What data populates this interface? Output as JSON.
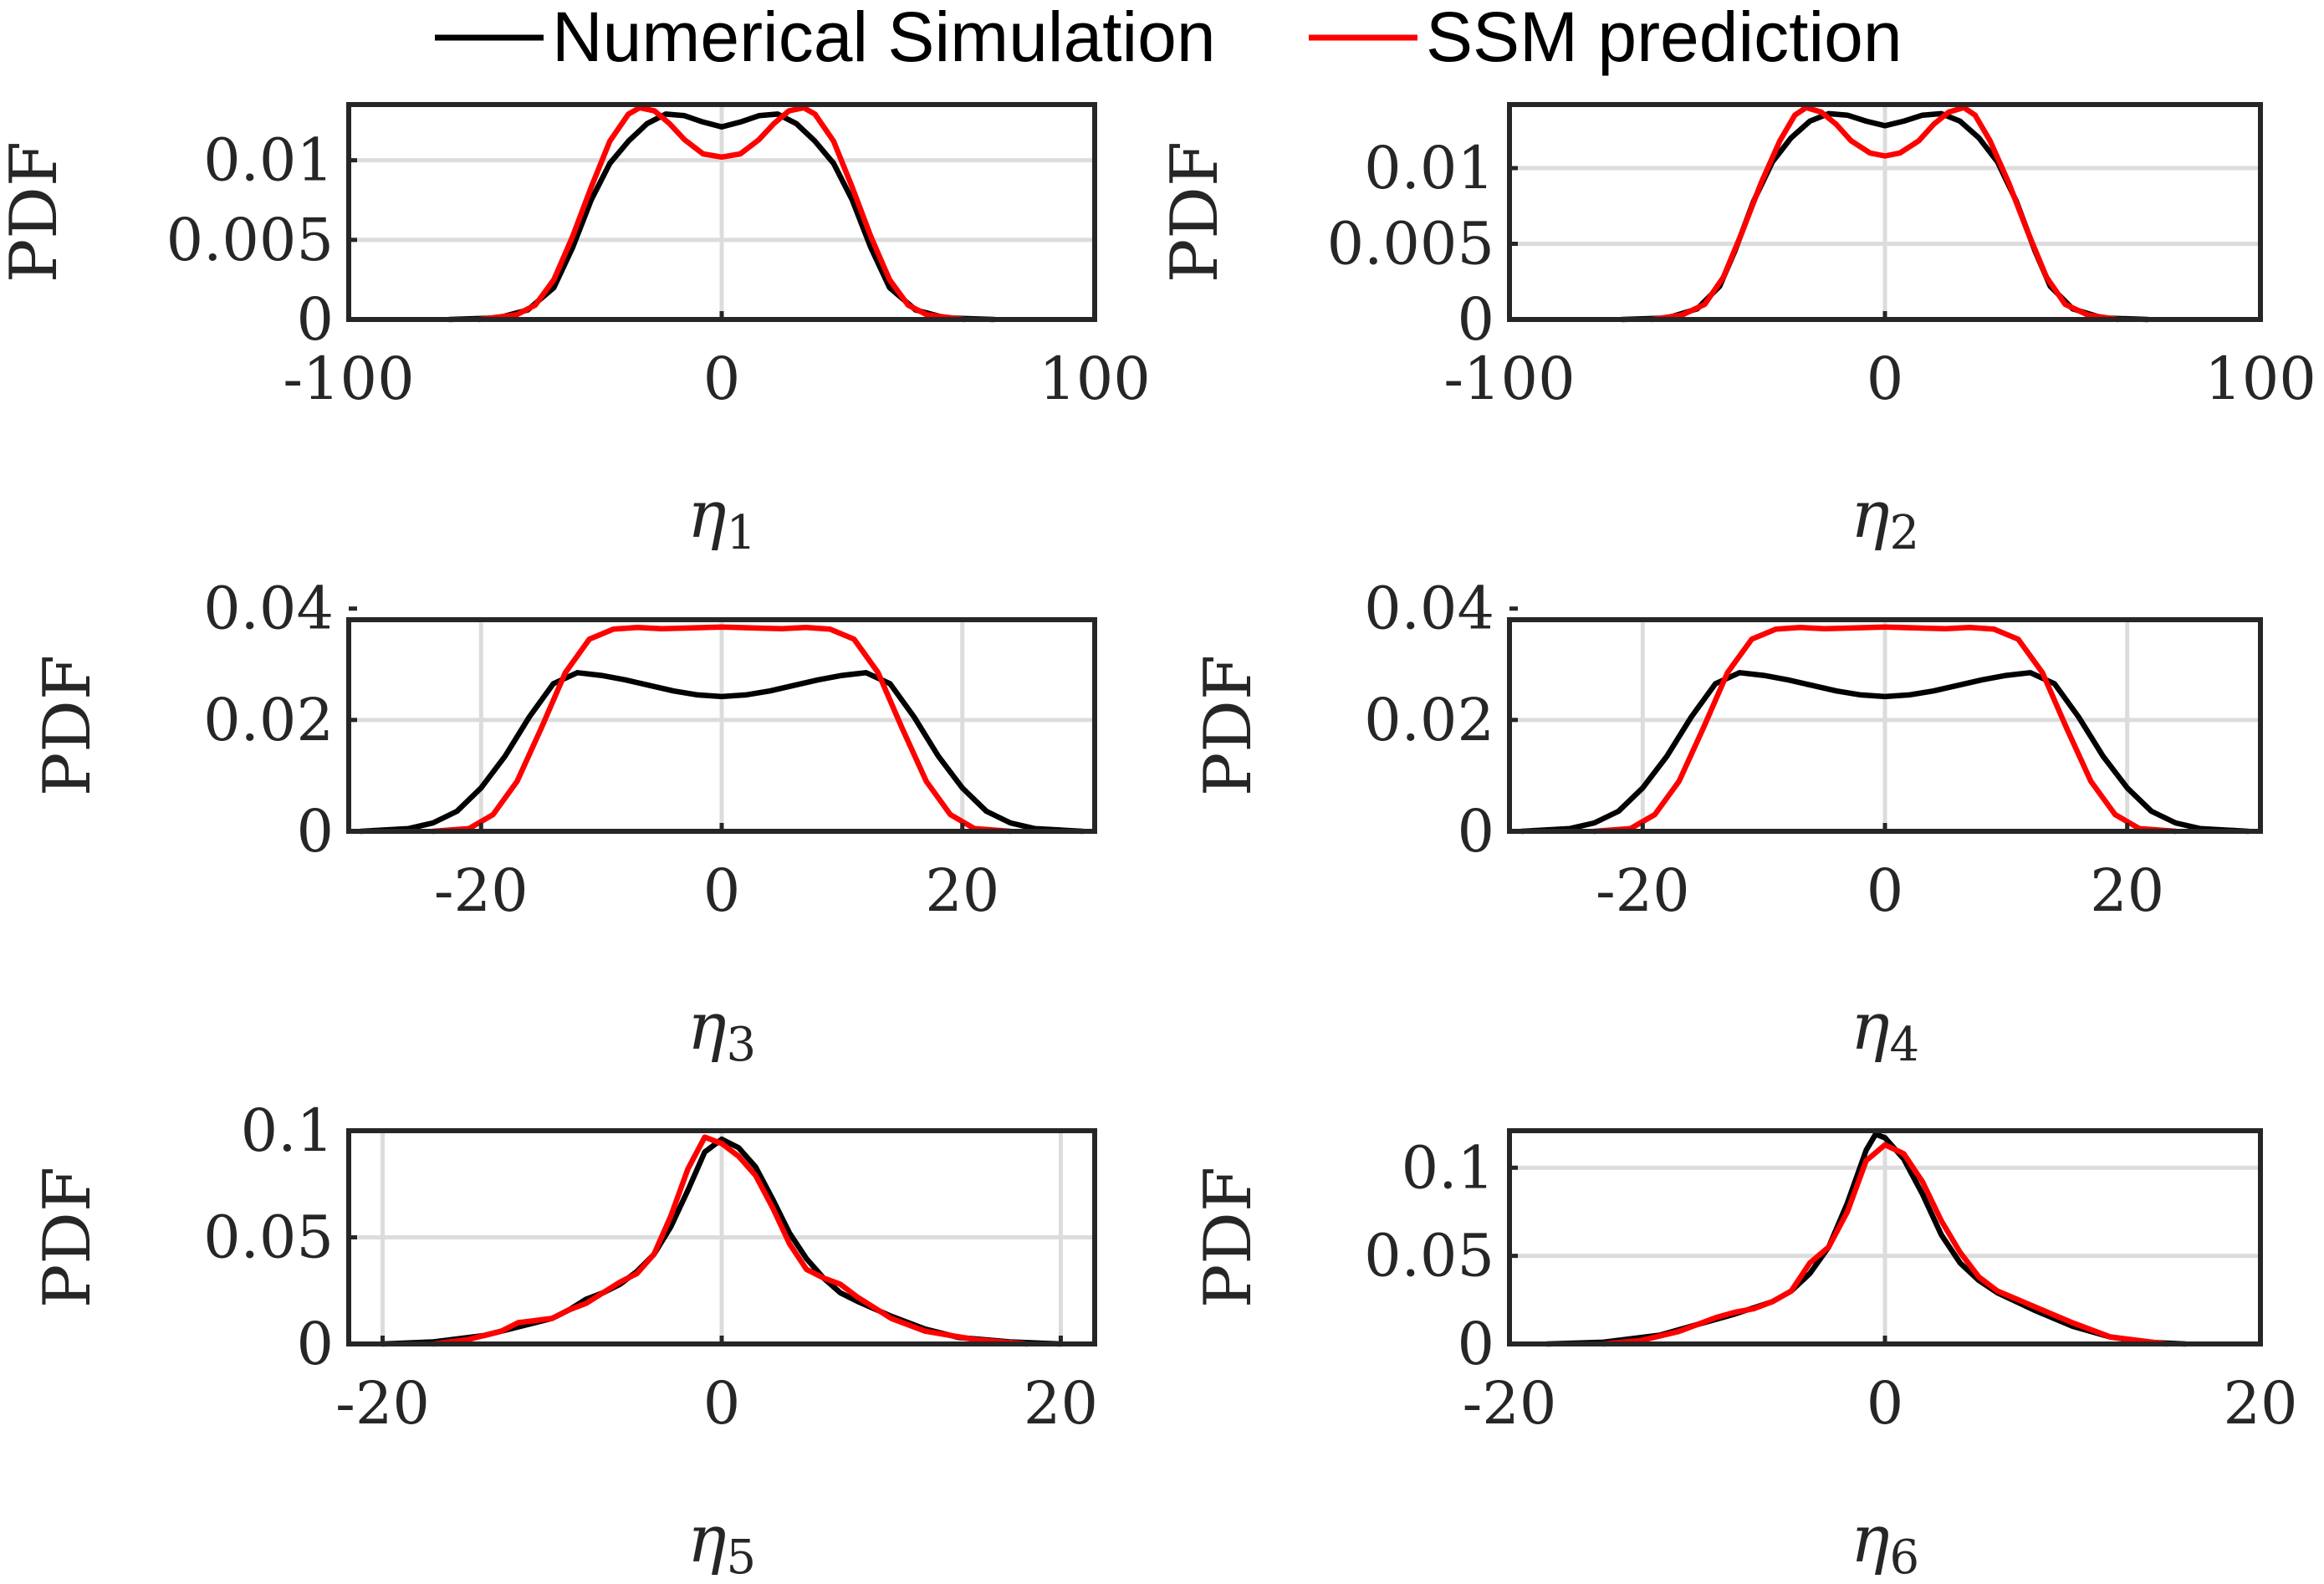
{
  "legend": [
    {
      "label": "Numerical Simulation",
      "color": "#000000"
    },
    {
      "label": "SSM prediction",
      "color": "#ff0000"
    }
  ],
  "chart_data": [
    {
      "type": "line",
      "ylabel": "PDF",
      "xlabel_symbol": "η",
      "xlabel_sub": "1",
      "xlim": [
        -100,
        100
      ],
      "ylim": [
        0,
        0.0135
      ],
      "xticks": [
        -100,
        0,
        100
      ],
      "xtick_labels": [
        "-100",
        "0",
        "100"
      ],
      "yticks": [
        0,
        0.005,
        0.01
      ],
      "ytick_labels": [
        "0",
        "0.005",
        "0.01"
      ],
      "grid": true,
      "series": [
        {
          "name": "Numerical Simulation",
          "color": "#000000",
          "x": [
            -73,
            -60,
            -52,
            -45,
            -40,
            -35,
            -30,
            -25,
            -20,
            -15,
            -10,
            -5,
            0,
            5,
            10,
            15,
            20,
            25,
            30,
            35,
            40,
            45,
            52,
            60,
            73
          ],
          "y": [
            0,
            0.0001,
            0.0006,
            0.002,
            0.0045,
            0.0075,
            0.0098,
            0.0112,
            0.0123,
            0.0129,
            0.0128,
            0.0124,
            0.0121,
            0.0124,
            0.0128,
            0.0129,
            0.0123,
            0.0112,
            0.0098,
            0.0075,
            0.0045,
            0.002,
            0.0006,
            0.0001,
            0
          ]
        },
        {
          "name": "SSM prediction",
          "color": "#ff0000",
          "x": [
            -65,
            -55,
            -50,
            -45,
            -40,
            -35,
            -30,
            -25,
            -22,
            -18,
            -14,
            -10,
            -5,
            0,
            5,
            10,
            14,
            18,
            22,
            25,
            30,
            35,
            40,
            45,
            50,
            55,
            65
          ],
          "y": [
            0,
            0.0003,
            0.0009,
            0.0025,
            0.0052,
            0.0083,
            0.0112,
            0.0129,
            0.0133,
            0.0131,
            0.0123,
            0.0113,
            0.0104,
            0.0102,
            0.0104,
            0.0113,
            0.0123,
            0.0131,
            0.0133,
            0.0129,
            0.0112,
            0.0083,
            0.0052,
            0.0025,
            0.0009,
            0.0003,
            0
          ]
        }
      ]
    },
    {
      "type": "line",
      "ylabel": "PDF",
      "xlabel_symbol": "η",
      "xlabel_sub": "2",
      "xlim": [
        -100,
        100
      ],
      "ylim": [
        0,
        0.0142
      ],
      "xticks": [
        -100,
        0,
        100
      ],
      "xtick_labels": [
        "-100",
        "0",
        "100"
      ],
      "yticks": [
        0,
        0.005,
        0.01
      ],
      "ytick_labels": [
        "0",
        "0.005",
        "0.01"
      ],
      "grid": true,
      "series": [
        {
          "name": "Numerical Simulation",
          "color": "#000000",
          "x": [
            -70,
            -58,
            -50,
            -44,
            -40,
            -35,
            -30,
            -25,
            -20,
            -15,
            -10,
            -5,
            0,
            5,
            10,
            15,
            20,
            25,
            30,
            35,
            40,
            44,
            50,
            58,
            70
          ],
          "y": [
            0,
            0.0001,
            0.0007,
            0.0022,
            0.0045,
            0.0078,
            0.0104,
            0.012,
            0.0131,
            0.0136,
            0.0135,
            0.0131,
            0.0128,
            0.0131,
            0.0135,
            0.0136,
            0.0131,
            0.012,
            0.0104,
            0.0078,
            0.0045,
            0.0022,
            0.0007,
            0.0001,
            0
          ]
        },
        {
          "name": "SSM prediction",
          "color": "#ff0000",
          "x": [
            -62,
            -54,
            -48,
            -43,
            -38,
            -33,
            -28,
            -24,
            -21,
            -17,
            -13,
            -9,
            -4,
            0,
            4,
            9,
            13,
            17,
            21,
            24,
            28,
            33,
            38,
            43,
            48,
            54,
            62
          ],
          "y": [
            0,
            0.0003,
            0.001,
            0.0028,
            0.0058,
            0.009,
            0.0118,
            0.0135,
            0.014,
            0.0137,
            0.0129,
            0.0118,
            0.011,
            0.0108,
            0.011,
            0.0118,
            0.0129,
            0.0137,
            0.014,
            0.0135,
            0.0118,
            0.009,
            0.0058,
            0.0028,
            0.001,
            0.0003,
            0
          ]
        }
      ]
    },
    {
      "type": "line",
      "ylabel": "PDF",
      "xlabel_symbol": "η",
      "xlabel_sub": "3",
      "xlim": [
        -31,
        31
      ],
      "ylim": [
        0,
        0.038
      ],
      "xticks": [
        -20,
        0,
        20
      ],
      "xtick_labels": [
        "-20",
        "0",
        "20"
      ],
      "yticks": [
        0,
        0.02,
        0.04
      ],
      "ytick_labels": [
        "0",
        "0.02",
        "0.04"
      ],
      "grid": true,
      "series": [
        {
          "name": "Numerical Simulation",
          "color": "#000000",
          "x": [
            -30,
            -26,
            -24,
            -22,
            -20,
            -18,
            -16,
            -14,
            -12,
            -10,
            -8,
            -6,
            -4,
            -2,
            0,
            2,
            4,
            6,
            8,
            10,
            12,
            14,
            16,
            18,
            20,
            22,
            24,
            26,
            30
          ],
          "y": [
            0,
            0.0005,
            0.0015,
            0.0036,
            0.0078,
            0.0135,
            0.0205,
            0.0265,
            0.0285,
            0.028,
            0.0272,
            0.0262,
            0.0252,
            0.0245,
            0.0242,
            0.0245,
            0.0252,
            0.0262,
            0.0272,
            0.028,
            0.0285,
            0.0265,
            0.0205,
            0.0135,
            0.0078,
            0.0036,
            0.0015,
            0.0005,
            0
          ]
        },
        {
          "name": "SSM prediction",
          "color": "#ff0000",
          "x": [
            -24,
            -21,
            -19,
            -17,
            -15,
            -13,
            -11,
            -9,
            -7,
            -5,
            -3,
            0,
            3,
            5,
            7,
            9,
            11,
            13,
            15,
            17,
            19,
            21,
            24
          ],
          "y": [
            0,
            0.0005,
            0.003,
            0.009,
            0.0185,
            0.0285,
            0.0345,
            0.0363,
            0.0366,
            0.0364,
            0.0365,
            0.0367,
            0.0365,
            0.0364,
            0.0366,
            0.0363,
            0.0345,
            0.0285,
            0.0185,
            0.009,
            0.003,
            0.0005,
            0
          ]
        }
      ]
    },
    {
      "type": "line",
      "ylabel": "PDF",
      "xlabel_symbol": "η",
      "xlabel_sub": "4",
      "xlim": [
        -31,
        31
      ],
      "ylim": [
        0,
        0.038
      ],
      "xticks": [
        -20,
        0,
        20
      ],
      "xtick_labels": [
        "-20",
        "0",
        "20"
      ],
      "yticks": [
        0,
        0.02,
        0.04
      ],
      "ytick_labels": [
        "0",
        "0.02",
        "0.04"
      ],
      "grid": true,
      "series": [
        {
          "name": "Numerical Simulation",
          "color": "#000000",
          "x": [
            -30,
            -26,
            -24,
            -22,
            -20,
            -18,
            -16,
            -14,
            -12,
            -10,
            -8,
            -6,
            -4,
            -2,
            0,
            2,
            4,
            6,
            8,
            10,
            12,
            14,
            16,
            18,
            20,
            22,
            24,
            26,
            30
          ],
          "y": [
            0,
            0.0005,
            0.0015,
            0.0036,
            0.0078,
            0.0135,
            0.0205,
            0.0265,
            0.0285,
            0.028,
            0.0272,
            0.0262,
            0.0252,
            0.0245,
            0.0242,
            0.0245,
            0.0252,
            0.0262,
            0.0272,
            0.028,
            0.0285,
            0.0265,
            0.0205,
            0.0135,
            0.0078,
            0.0036,
            0.0015,
            0.0005,
            0
          ]
        },
        {
          "name": "SSM prediction",
          "color": "#ff0000",
          "x": [
            -24,
            -21,
            -19,
            -17,
            -15,
            -13,
            -11,
            -9,
            -7,
            -5,
            -3,
            0,
            3,
            5,
            7,
            9,
            11,
            13,
            15,
            17,
            19,
            21,
            24
          ],
          "y": [
            0,
            0.0005,
            0.003,
            0.009,
            0.0185,
            0.0285,
            0.0345,
            0.0363,
            0.0366,
            0.0364,
            0.0365,
            0.0367,
            0.0365,
            0.0364,
            0.0366,
            0.0363,
            0.0345,
            0.0285,
            0.0185,
            0.009,
            0.003,
            0.0005,
            0
          ]
        }
      ]
    },
    {
      "type": "line",
      "ylabel": "PDF",
      "xlabel_symbol": "η",
      "xlabel_sub": "5",
      "xlim": [
        -22,
        22
      ],
      "ylim": [
        0,
        0.1
      ],
      "xticks": [
        -20,
        0,
        20
      ],
      "xtick_labels": [
        "-20",
        "0",
        "20"
      ],
      "yticks": [
        0,
        0.05,
        0.1
      ],
      "ytick_labels": [
        "0",
        "0.05",
        "0.1"
      ],
      "grid": true,
      "series": [
        {
          "name": "Numerical Simulation",
          "color": "#000000",
          "x": [
            -20,
            -17,
            -14,
            -12,
            -10,
            -9,
            -8,
            -7,
            -6,
            -5,
            -4,
            -3,
            -2,
            -1,
            0,
            1,
            2,
            3,
            4,
            5,
            6,
            7,
            8,
            10,
            12,
            14,
            17,
            20
          ],
          "y": [
            0,
            0.001,
            0.004,
            0.008,
            0.012,
            0.016,
            0.021,
            0.024,
            0.028,
            0.034,
            0.042,
            0.055,
            0.072,
            0.09,
            0.096,
            0.092,
            0.083,
            0.068,
            0.052,
            0.04,
            0.031,
            0.024,
            0.02,
            0.013,
            0.007,
            0.003,
            0.001,
            0
          ]
        },
        {
          "name": "SSM prediction",
          "color": "#ff0000",
          "x": [
            -17,
            -15,
            -13,
            -12,
            -11,
            -10,
            -9,
            -8,
            -7,
            -6,
            -5,
            -4,
            -3,
            -2,
            -1,
            0,
            1,
            2,
            3,
            4,
            5,
            6,
            7,
            8,
            10,
            12,
            15,
            18
          ],
          "y": [
            0,
            0.002,
            0.006,
            0.01,
            0.011,
            0.012,
            0.016,
            0.019,
            0.024,
            0.029,
            0.033,
            0.042,
            0.06,
            0.082,
            0.097,
            0.094,
            0.088,
            0.079,
            0.064,
            0.047,
            0.035,
            0.031,
            0.028,
            0.022,
            0.012,
            0.006,
            0.002,
            0
          ]
        }
      ]
    },
    {
      "type": "line",
      "ylabel": "PDF",
      "xlabel_symbol": "η",
      "xlabel_sub": "6",
      "xlim": [
        -20,
        20
      ],
      "ylim": [
        0,
        0.121
      ],
      "xticks": [
        -20,
        0,
        20
      ],
      "xtick_labels": [
        "-20",
        "0",
        "20"
      ],
      "yticks": [
        0,
        0.05,
        0.1
      ],
      "ytick_labels": [
        "0",
        "0.05",
        "0.1"
      ],
      "grid": true,
      "series": [
        {
          "name": "Numerical Simulation",
          "color": "#000000",
          "x": [
            -18,
            -15,
            -12,
            -10,
            -8,
            -6,
            -5,
            -4,
            -3,
            -2,
            -1,
            -0.5,
            0,
            1,
            2,
            3,
            4,
            5,
            6,
            8,
            10,
            12,
            14,
            16
          ],
          "y": [
            0,
            0.001,
            0.005,
            0.011,
            0.017,
            0.024,
            0.03,
            0.04,
            0.055,
            0.08,
            0.11,
            0.119,
            0.117,
            0.105,
            0.085,
            0.062,
            0.046,
            0.036,
            0.029,
            0.019,
            0.01,
            0.004,
            0.001,
            0
          ]
        },
        {
          "name": "SSM prediction",
          "color": "#ff0000",
          "x": [
            -15,
            -13,
            -11,
            -10,
            -9,
            -8,
            -7,
            -6,
            -5,
            -4,
            -3,
            -2,
            -1,
            0,
            1,
            2,
            3,
            4,
            5,
            6,
            8,
            10,
            12,
            15
          ],
          "y": [
            0,
            0.002,
            0.007,
            0.011,
            0.015,
            0.018,
            0.02,
            0.024,
            0.03,
            0.046,
            0.055,
            0.075,
            0.104,
            0.113,
            0.108,
            0.092,
            0.07,
            0.052,
            0.038,
            0.03,
            0.021,
            0.012,
            0.004,
            0
          ]
        }
      ]
    }
  ]
}
